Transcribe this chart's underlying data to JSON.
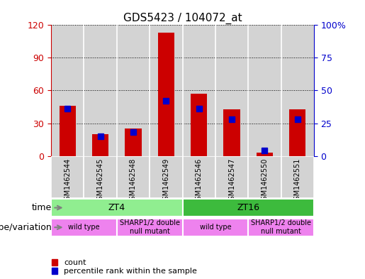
{
  "title": "GDS5423 / 104072_at",
  "samples": [
    "GSM1462544",
    "GSM1462545",
    "GSM1462548",
    "GSM1462549",
    "GSM1462546",
    "GSM1462547",
    "GSM1462550",
    "GSM1462551"
  ],
  "counts": [
    46,
    20,
    25,
    113,
    57,
    43,
    3,
    43
  ],
  "percentiles": [
    36,
    15,
    18,
    42,
    36,
    28,
    4,
    28
  ],
  "ylim_left": [
    0,
    120
  ],
  "ylim_right": [
    0,
    100
  ],
  "yticks_left": [
    0,
    30,
    60,
    90,
    120
  ],
  "yticks_right": [
    0,
    25,
    50,
    75,
    100
  ],
  "yticklabels_left": [
    "0",
    "30",
    "60",
    "90",
    "120"
  ],
  "yticklabels_right": [
    "0",
    "25",
    "50",
    "75",
    "100%"
  ],
  "bar_color_count": "#cc0000",
  "bar_color_pct": "#0000cc",
  "time_groups": [
    {
      "label": "ZT4",
      "start": 0,
      "end": 3,
      "color": "#90ee90"
    },
    {
      "label": "ZT16",
      "start": 4,
      "end": 7,
      "color": "#3dbb3d"
    }
  ],
  "genotype_groups": [
    {
      "label": "wild type",
      "start": 0,
      "end": 1,
      "color": "#ee82ee"
    },
    {
      "label": "SHARP1/2 double\nnull mutant",
      "start": 2,
      "end": 3,
      "color": "#ee82ee"
    },
    {
      "label": "wild type",
      "start": 4,
      "end": 5,
      "color": "#ee82ee"
    },
    {
      "label": "SHARP1/2 double\nnull mutant",
      "start": 6,
      "end": 7,
      "color": "#ee82ee"
    }
  ],
  "label_time": "time",
  "label_genotype": "genotype/variation",
  "legend_count": "count",
  "legend_pct": "percentile rank within the sample",
  "bg_color": "#d3d3d3",
  "plot_bg": "#ffffff"
}
